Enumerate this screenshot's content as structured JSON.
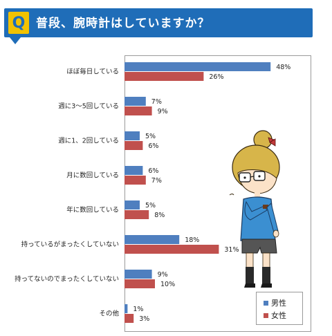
{
  "header": {
    "badge": "Q",
    "title": "普段、腕時計はしていますか？"
  },
  "colors": {
    "header_blue": "#1f6db8",
    "badge_yellow": "#f2c200",
    "male": "#4f7fbf",
    "female": "#c0504d"
  },
  "chart_data": {
    "type": "bar",
    "orientation": "horizontal",
    "categories": [
      "ほぼ毎日している",
      "週に3〜5回している",
      "週に1、2回している",
      "月に数回している",
      "年に数回している",
      "持っているがまったくしていない",
      "持ってないのでまったくしていない",
      "その他"
    ],
    "series": [
      {
        "name": "男性",
        "values": [
          48,
          7,
          5,
          6,
          5,
          18,
          9,
          1
        ],
        "color": "#4f7fbf"
      },
      {
        "name": "女性",
        "values": [
          26,
          9,
          6,
          7,
          8,
          31,
          10,
          3
        ],
        "color": "#c0504d"
      }
    ],
    "value_suffix": "%",
    "xlim": [
      0,
      60
    ],
    "grid": false,
    "legend_position": "bottom-right"
  },
  "legend": {
    "male": "男性",
    "female": "女性"
  },
  "illustration": {
    "icon": "girl-with-glasses-illustration"
  }
}
